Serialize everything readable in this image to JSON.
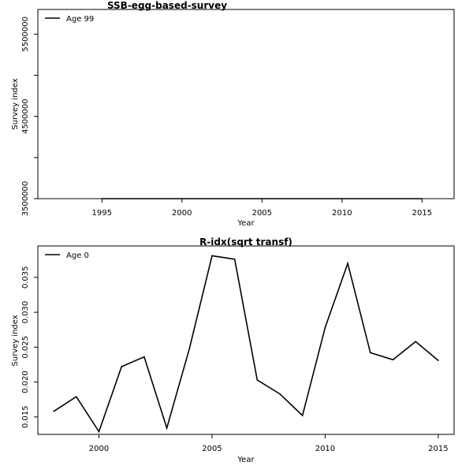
{
  "chart_data": [
    {
      "type": "line",
      "title": "SSB-egg-based-survey",
      "xlabel": "Year",
      "ylabel": "Survey index",
      "xlim": [
        1991,
        2017
      ],
      "ylim": [
        3500000,
        5800000
      ],
      "x_ticks": [
        "1995",
        "2000",
        "2005",
        "2010",
        "2015"
      ],
      "y_ticks": [
        "3500000",
        "4500000",
        "5500000"
      ],
      "y_minor_ticks": [
        4000000,
        5000000
      ],
      "legend": {
        "position": "top-left",
        "entries": [
          "Age 99"
        ]
      },
      "series": [
        {
          "name": "Age 99",
          "x": [
            1995,
            2015
          ],
          "y": [
            3500000,
            3500000
          ]
        }
      ]
    },
    {
      "type": "line",
      "title": "R-idx(sqrt transf)",
      "xlabel": "Year",
      "ylabel": "Survey index",
      "xlim": [
        1997.3,
        2015.7
      ],
      "ylim": [
        0.0125,
        0.0395
      ],
      "x_ticks": [
        "2000",
        "2005",
        "2010",
        "2015"
      ],
      "y_ticks": [
        "0.015",
        "0.020",
        "0.025",
        "0.030",
        "0.035"
      ],
      "legend": {
        "position": "top-left",
        "entries": [
          "Age 0"
        ]
      },
      "series": [
        {
          "name": "Age 0",
          "x": [
            1998,
            1999,
            2000,
            2001,
            2002,
            2003,
            2004,
            2005,
            2006,
            2007,
            2008,
            2009,
            2010,
            2011,
            2012,
            2013,
            2014,
            2015
          ],
          "y": [
            0.0158,
            0.0179,
            0.0129,
            0.0222,
            0.0236,
            0.0134,
            0.0248,
            0.0381,
            0.0376,
            0.0203,
            0.0183,
            0.0152,
            0.0278,
            0.037,
            0.0242,
            0.0232,
            0.0258,
            0.0231
          ]
        }
      ]
    }
  ]
}
